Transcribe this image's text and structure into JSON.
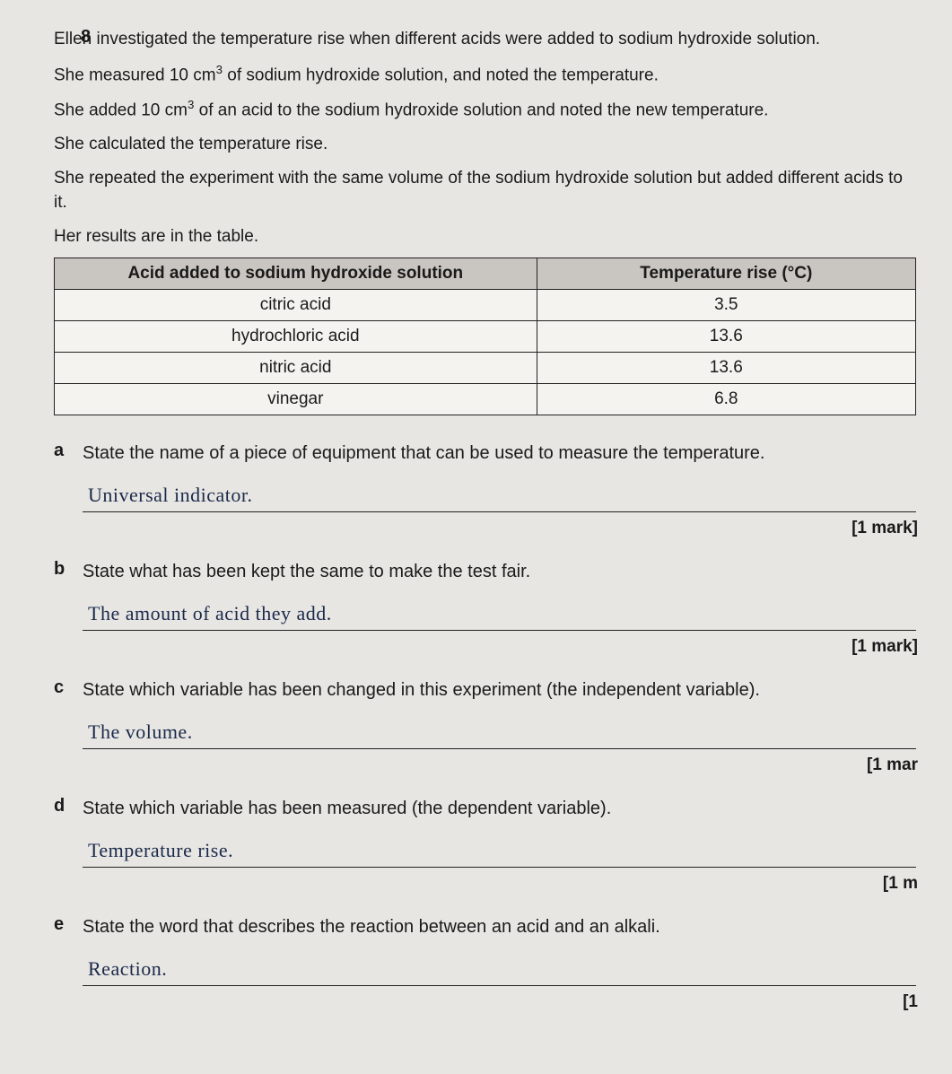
{
  "question_number": "8",
  "intro": {
    "p1": "Ellen investigated the temperature rise when different acids were added to sodium hydroxide solution.",
    "p2_a": "She measured 10 cm",
    "p2_b": " of sodium hydroxide solution, and noted the temperature.",
    "p3_a": "She added 10 cm",
    "p3_b": " of an acid to the sodium hydroxide solution and noted the new temperature.",
    "p4": "She calculated the temperature rise.",
    "p5": "She repeated the experiment with the same volume of the sodium hydroxide solution but added different acids to it.",
    "p6": "Her results are in the table."
  },
  "table": {
    "type": "table",
    "header_bg": "#c9c6c1",
    "row_bg": "#f5f3f0",
    "border_color": "#222222",
    "columns": [
      "Acid added to sodium hydroxide solution",
      "Temperature rise (°C)"
    ],
    "rows": [
      [
        "citric acid",
        "3.5"
      ],
      [
        "hydrochloric acid",
        "13.6"
      ],
      [
        "nitric acid",
        "13.6"
      ],
      [
        "vinegar",
        "6.8"
      ]
    ]
  },
  "parts": {
    "a": {
      "label": "a",
      "prompt": "State the name of a piece of equipment that can be used to measure the temperature.",
      "answer": "Universal   indicator.",
      "mark": "[1 mark]"
    },
    "b": {
      "label": "b",
      "prompt": "State what has been kept the same to make the test fair.",
      "answer": "The   amount   of   acid  they add.",
      "mark": "[1 mark]"
    },
    "c": {
      "label": "c",
      "prompt": "State which variable has been changed in this experiment (the independent variable).",
      "answer": "The   volume.",
      "mark": "[1 mar"
    },
    "d": {
      "label": "d",
      "prompt": "State which variable has been measured (the dependent variable).",
      "answer": "Temperature   rise.",
      "mark": "[1 m"
    },
    "e": {
      "label": "e",
      "prompt": "State the word that describes the reaction between an acid and an alkali.",
      "answer": "Reaction.",
      "mark": "[1"
    }
  },
  "colors": {
    "page_bg": "#e8e6e3",
    "text": "#1a1a1a",
    "hand_ink": "#1a2a4a"
  },
  "fonts": {
    "body_family": "Arial",
    "body_size_pt": 14,
    "hand_family": "cursive",
    "hand_size_pt": 16
  }
}
